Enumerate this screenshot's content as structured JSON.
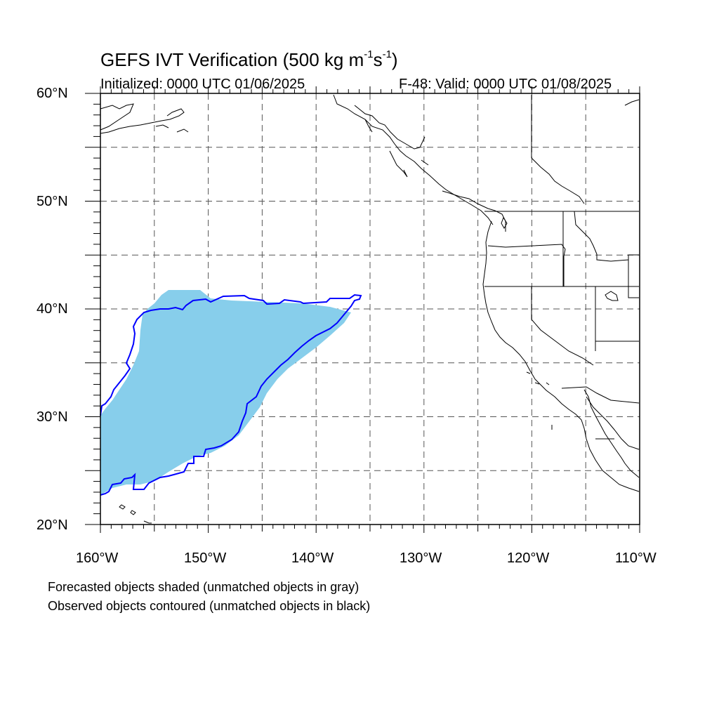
{
  "title": {
    "prefix": "GEFS IVT Verification (500 kg m",
    "exp1": "-1",
    "mid": "s",
    "exp2": "-1",
    "suffix": ")"
  },
  "initialized": "Initialized: 0000 UTC 01/06/2025",
  "valid": "F-48: Valid: 0000 UTC 01/08/2025",
  "map": {
    "lon_range": [
      -160,
      -110
    ],
    "lat_range": [
      20,
      60
    ],
    "lat_labels": [
      "20°N",
      "30°N",
      "40°N",
      "50°N",
      "60°N"
    ],
    "lon_labels": [
      "160°W",
      "150°W",
      "140°W",
      "130°W",
      "120°W",
      "110°W"
    ],
    "gridlines": "dashed every 5°",
    "forecast_fill_color": "#87CEEB",
    "observed_contour_color": "#0000FF",
    "coastline_color": "#000000"
  },
  "notes": [
    "Forecasted objects shaded (unmatched objects in gray)",
    "Observed objects contoured (unmatched objects in black)"
  ]
}
